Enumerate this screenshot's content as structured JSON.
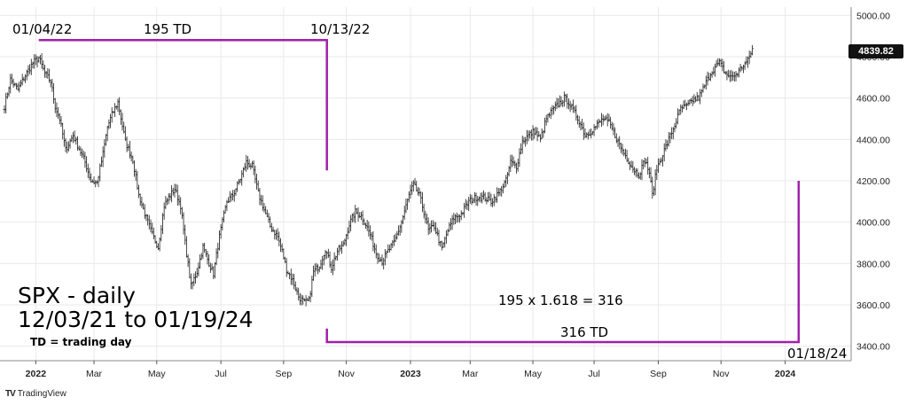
{
  "chart_data": {
    "type": "ohlc",
    "yticks": [
      "3400.00",
      "3600.00",
      "3800.00",
      "4000.00",
      "4200.00",
      "4400.00",
      "4600.00",
      "4800.00",
      "5000.00"
    ],
    "ylim": [
      3330,
      5040
    ],
    "xticks": [
      {
        "label": "2022",
        "day": 0,
        "bold": true
      },
      {
        "label": "Mar",
        "day": 39
      },
      {
        "label": "May",
        "day": 81
      },
      {
        "label": "Jul",
        "day": 124
      },
      {
        "label": "Sep",
        "day": 166
      },
      {
        "label": "Nov",
        "day": 208
      },
      {
        "label": "2023",
        "day": 251,
        "bold": true
      },
      {
        "label": "Mar",
        "day": 291
      },
      {
        "label": "May",
        "day": 333
      },
      {
        "label": "Jul",
        "day": 374
      },
      {
        "label": "Sep",
        "day": 417
      },
      {
        "label": "Nov",
        "day": 459
      },
      {
        "label": "2024",
        "day": 502,
        "bold": true
      }
    ],
    "xlim": [
      -21,
      545
    ],
    "last_price": "4839.82",
    "anchors": [
      [
        -21,
        4560
      ],
      [
        -17,
        4690
      ],
      [
        -12,
        4640
      ],
      [
        -7,
        4710
      ],
      [
        -2,
        4770
      ],
      [
        2,
        4796
      ],
      [
        6,
        4720
      ],
      [
        10,
        4680
      ],
      [
        13,
        4560
      ],
      [
        16,
        4500
      ],
      [
        20,
        4350
      ],
      [
        25,
        4420
      ],
      [
        30,
        4340
      ],
      [
        33,
        4290
      ],
      [
        37,
        4200
      ],
      [
        41,
        4190
      ],
      [
        45,
        4330
      ],
      [
        48,
        4460
      ],
      [
        51,
        4520
      ],
      [
        55,
        4580
      ],
      [
        60,
        4390
      ],
      [
        65,
        4300
      ],
      [
        69,
        4130
      ],
      [
        74,
        4020
      ],
      [
        78,
        3940
      ],
      [
        82,
        3880
      ],
      [
        86,
        4080
      ],
      [
        89,
        4120
      ],
      [
        93,
        4160
      ],
      [
        97,
        4080
      ],
      [
        100,
        3900
      ],
      [
        104,
        3690
      ],
      [
        108,
        3760
      ],
      [
        112,
        3880
      ],
      [
        115,
        3820
      ],
      [
        119,
        3750
      ],
      [
        123,
        3930
      ],
      [
        128,
        4100
      ],
      [
        132,
        4130
      ],
      [
        137,
        4210
      ],
      [
        141,
        4290
      ],
      [
        145,
        4270
      ],
      [
        149,
        4140
      ],
      [
        152,
        4080
      ],
      [
        157,
        3980
      ],
      [
        162,
        3930
      ],
      [
        165,
        3860
      ],
      [
        168,
        3770
      ],
      [
        172,
        3720
      ],
      [
        176,
        3640
      ],
      [
        180,
        3610
      ],
      [
        183,
        3620
      ],
      [
        186,
        3760
      ],
      [
        190,
        3790
      ],
      [
        194,
        3870
      ],
      [
        198,
        3780
      ],
      [
        202,
        3860
      ],
      [
        206,
        3890
      ],
      [
        210,
        3990
      ],
      [
        214,
        4050
      ],
      [
        218,
        4030
      ],
      [
        221,
        3990
      ],
      [
        224,
        3940
      ],
      [
        228,
        3850
      ],
      [
        232,
        3810
      ],
      [
        236,
        3860
      ],
      [
        240,
        3900
      ],
      [
        245,
        4000
      ],
      [
        250,
        4130
      ],
      [
        253,
        4180
      ],
      [
        257,
        4130
      ],
      [
        260,
        4050
      ],
      [
        263,
        3960
      ],
      [
        267,
        3980
      ],
      [
        272,
        3870
      ],
      [
        276,
        3960
      ],
      [
        280,
        4020
      ],
      [
        285,
        4040
      ],
      [
        290,
        4100
      ],
      [
        295,
        4120
      ],
      [
        300,
        4120
      ],
      [
        305,
        4100
      ],
      [
        310,
        4140
      ],
      [
        315,
        4200
      ],
      [
        318,
        4290
      ],
      [
        322,
        4270
      ],
      [
        326,
        4390
      ],
      [
        330,
        4420
      ],
      [
        334,
        4440
      ],
      [
        338,
        4400
      ],
      [
        342,
        4500
      ],
      [
        346,
        4540
      ],
      [
        350,
        4570
      ],
      [
        354,
        4600
      ],
      [
        357,
        4580
      ],
      [
        360,
        4540
      ],
      [
        364,
        4490
      ],
      [
        368,
        4420
      ],
      [
        372,
        4440
      ],
      [
        376,
        4470
      ],
      [
        380,
        4500
      ],
      [
        384,
        4480
      ],
      [
        388,
        4420
      ],
      [
        392,
        4360
      ],
      [
        396,
        4310
      ],
      [
        400,
        4260
      ],
      [
        404,
        4230
      ],
      [
        408,
        4300
      ],
      [
        411,
        4240
      ],
      [
        413,
        4130
      ],
      [
        416,
        4260
      ],
      [
        420,
        4330
      ],
      [
        424,
        4400
      ],
      [
        428,
        4470
      ],
      [
        432,
        4550
      ],
      [
        436,
        4560
      ],
      [
        440,
        4590
      ],
      [
        444,
        4600
      ],
      [
        448,
        4660
      ],
      [
        452,
        4720
      ],
      [
        455,
        4750
      ],
      [
        458,
        4770
      ],
      [
        462,
        4720
      ],
      [
        466,
        4700
      ],
      [
        470,
        4720
      ],
      [
        474,
        4760
      ],
      [
        477,
        4780
      ],
      [
        480,
        4839.82
      ]
    ],
    "tl_pts": [
      [
        2,
        4880
      ],
      [
        195,
        4880
      ],
      [
        195,
        4250
      ]
    ],
    "br_pts": [
      [
        195,
        3485
      ],
      [
        195,
        3420
      ],
      [
        511,
        3420
      ],
      [
        511,
        4200
      ]
    ]
  },
  "annotations": {
    "left_date": "01/04/22",
    "count_195": "195 TD",
    "mid_date": "10/13/22",
    "fib_calc": "195 x 1.618 = 316",
    "count_316": "316 TD",
    "end_date": "01/18/24",
    "title_line1": "SPX - daily",
    "title_line2": "12/03/21 to 01/19/24",
    "legend_td": "TD = trading day"
  },
  "brand": {
    "logo_mark": "TV",
    "logo_text": "TradingView"
  },
  "colors": {
    "bars": "#333333",
    "marker": "#a020a8",
    "grid": "#e9e9ee",
    "axis": "#555555"
  }
}
